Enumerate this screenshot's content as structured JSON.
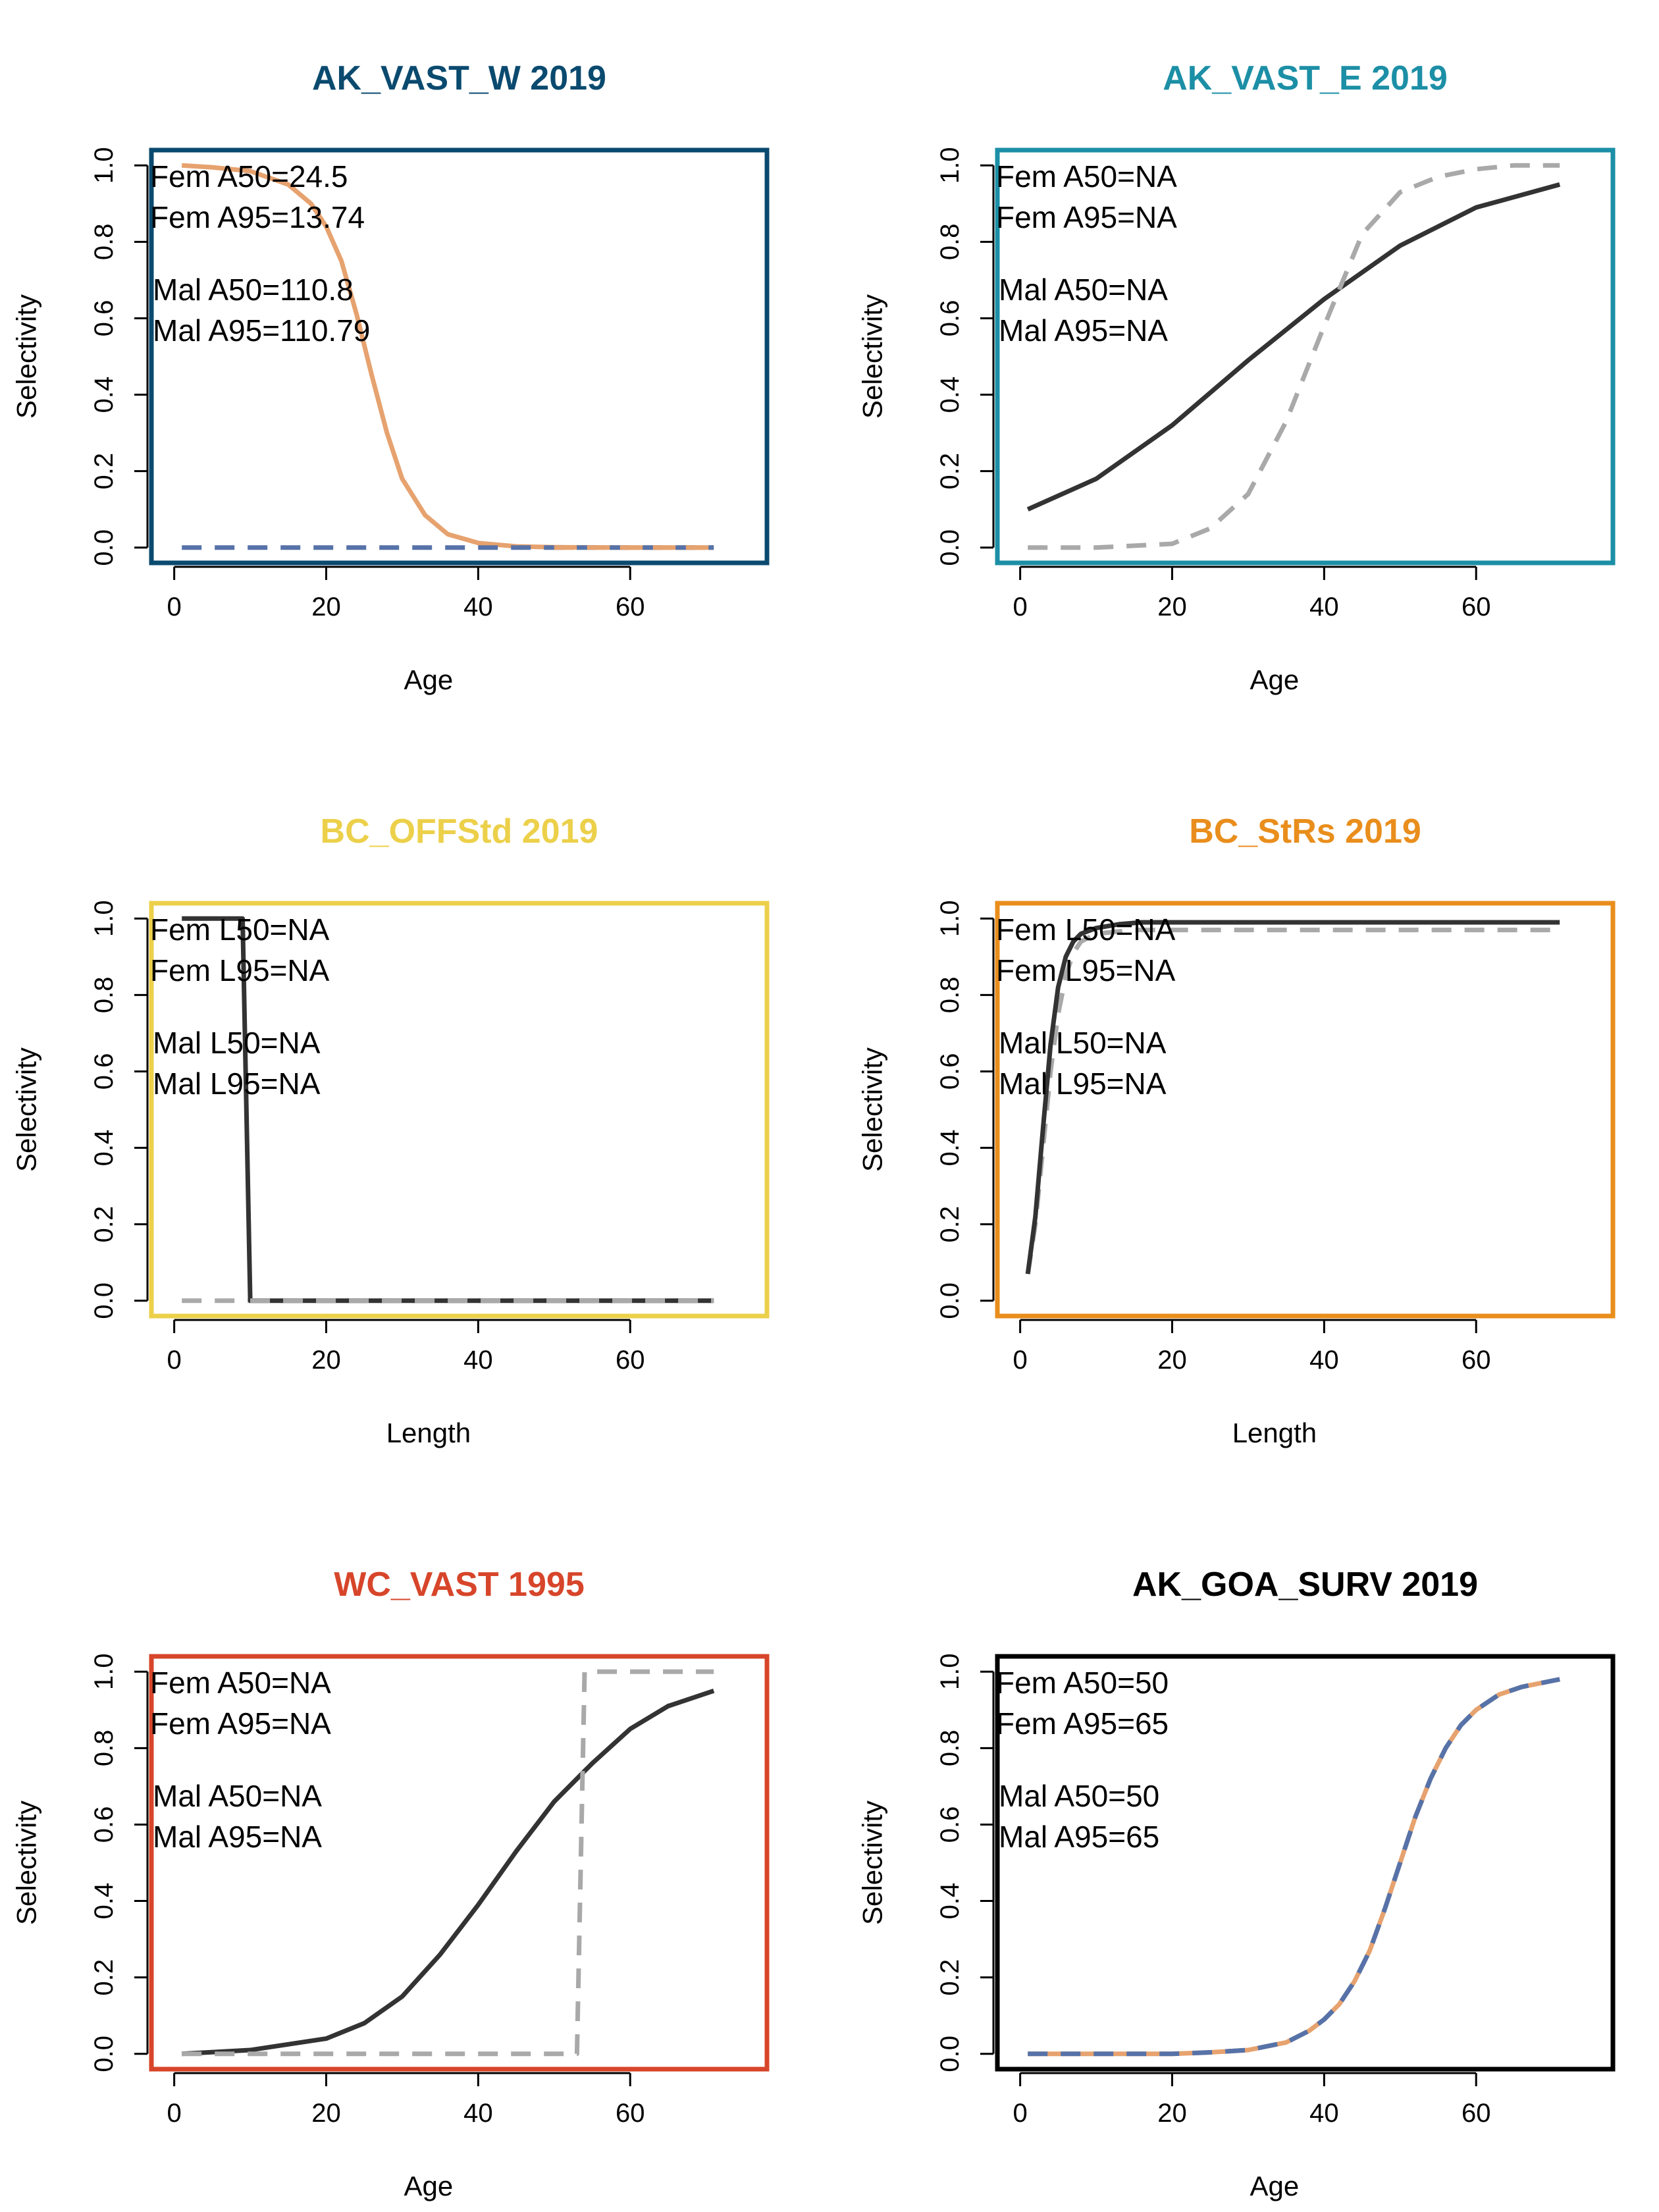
{
  "colors": {
    "female": "#e6a26f",
    "male": "#5672a8",
    "black_line": "#333333",
    "grey_line": "#a9a9a9"
  },
  "chart_data": [
    {
      "type": "line",
      "title": "AK_VAST_W 2019",
      "title_color": "#0b4a6f",
      "frame_color": "#0b4a6f",
      "xlabel": "Age",
      "ylabel": "Selectivity",
      "xlim": [
        -3,
        78
      ],
      "ylim": [
        -0.04,
        1.04
      ],
      "xticks": [
        "0",
        "20",
        "40",
        "60"
      ],
      "yticks": [
        "0.0",
        "0.2",
        "0.4",
        "0.6",
        "0.8",
        "1.0"
      ],
      "annotations": [
        "Fem A50=24.5",
        "Fem A95=13.74",
        "Mal A50=110.8",
        "Mal A95=110.79"
      ],
      "series": [
        {
          "style": "solid",
          "color": "#e6a26f",
          "x": [
            1,
            5,
            10,
            15,
            18,
            20,
            22,
            24,
            26,
            28,
            30,
            33,
            36,
            40,
            45,
            50,
            60,
            71
          ],
          "y": [
            1.0,
            0.995,
            0.985,
            0.95,
            0.9,
            0.84,
            0.75,
            0.61,
            0.45,
            0.3,
            0.18,
            0.085,
            0.035,
            0.012,
            0.003,
            0.001,
            0.0,
            0.0
          ]
        },
        {
          "style": "dashed",
          "color": "#5672a8",
          "x": [
            1,
            71
          ],
          "y": [
            0.0,
            0.0
          ]
        },
        {
          "style": "dashed",
          "color": "#e6a26f",
          "x": [
            50,
            71
          ],
          "y": [
            0.0,
            0.0
          ]
        }
      ]
    },
    {
      "type": "line",
      "title": "AK_VAST_E 2019",
      "title_color": "#1c8fa6",
      "frame_color": "#1c8fa6",
      "xlabel": "Age",
      "ylabel": "Selectivity",
      "xlim": [
        -3,
        78
      ],
      "ylim": [
        -0.04,
        1.04
      ],
      "xticks": [
        "0",
        "20",
        "40",
        "60"
      ],
      "yticks": [
        "0.0",
        "0.2",
        "0.4",
        "0.6",
        "0.8",
        "1.0"
      ],
      "annotations": [
        "Fem A50=NA",
        "Fem A95=NA",
        "Mal A50=NA",
        "Mal A95=NA"
      ],
      "series": [
        {
          "style": "solid",
          "color": "#333333",
          "x": [
            1,
            10,
            20,
            30,
            40,
            50,
            60,
            71
          ],
          "y": [
            0.1,
            0.18,
            0.32,
            0.49,
            0.65,
            0.79,
            0.89,
            0.95
          ]
        },
        {
          "style": "dashed",
          "color": "#a9a9a9",
          "x": [
            1,
            10,
            20,
            25,
            30,
            35,
            40,
            45,
            50,
            55,
            60,
            65,
            71
          ],
          "y": [
            0.0,
            0.0,
            0.01,
            0.05,
            0.14,
            0.33,
            0.58,
            0.82,
            0.93,
            0.97,
            0.99,
            1.0,
            1.0
          ]
        }
      ]
    },
    {
      "type": "line",
      "title": "BC_OFFStd 2019",
      "title_color": "#ecd04a",
      "frame_color": "#ecd04a",
      "xlabel": "Length",
      "ylabel": "Selectivity",
      "xlim": [
        -3,
        78
      ],
      "ylim": [
        -0.04,
        1.04
      ],
      "xticks": [
        "0",
        "20",
        "40",
        "60"
      ],
      "yticks": [
        "0.0",
        "0.2",
        "0.4",
        "0.6",
        "0.8",
        "1.0"
      ],
      "annotations": [
        "Fem L50=NA",
        "Fem L95=NA",
        "Mal L50=NA",
        "Mal L95=NA"
      ],
      "series": [
        {
          "style": "dashed",
          "color": "#a9a9a9",
          "x": [
            1,
            71
          ],
          "y": [
            0.0,
            0.0
          ]
        },
        {
          "style": "solid",
          "color": "#333333",
          "x": [
            1,
            9,
            10,
            71
          ],
          "y": [
            1.0,
            1.0,
            0.0,
            0.0
          ],
          "dashed_from": 10
        }
      ]
    },
    {
      "type": "line",
      "title": "BC_StRs 2019",
      "title_color": "#e98e1c",
      "frame_color": "#e98e1c",
      "xlabel": "Length",
      "ylabel": "Selectivity",
      "xlim": [
        -3,
        78
      ],
      "ylim": [
        -0.04,
        1.04
      ],
      "xticks": [
        "0",
        "20",
        "40",
        "60"
      ],
      "yticks": [
        "0.0",
        "0.2",
        "0.4",
        "0.6",
        "0.8",
        "1.0"
      ],
      "annotations": [
        "Fem L50=NA",
        "Fem L95=NA",
        "Mal L50=NA",
        "Mal L95=NA"
      ],
      "series": [
        {
          "style": "dashed",
          "color": "#a9a9a9",
          "x": [
            1,
            2,
            3,
            4,
            5,
            6,
            7,
            8,
            10,
            15,
            20,
            71
          ],
          "y": [
            0.07,
            0.2,
            0.4,
            0.6,
            0.75,
            0.85,
            0.91,
            0.94,
            0.96,
            0.97,
            0.97,
            0.97
          ]
        },
        {
          "style": "solid",
          "color": "#333333",
          "x": [
            1,
            2,
            3,
            4,
            5,
            6,
            7,
            8,
            10,
            13,
            16,
            20,
            71
          ],
          "y": [
            0.07,
            0.22,
            0.45,
            0.67,
            0.82,
            0.9,
            0.94,
            0.96,
            0.975,
            0.985,
            0.99,
            0.99,
            0.99
          ]
        }
      ]
    },
    {
      "type": "line",
      "title": "WC_VAST 1995",
      "title_color": "#d7452a",
      "frame_color": "#d7452a",
      "xlabel": "Age",
      "ylabel": "Selectivity",
      "xlim": [
        -3,
        78
      ],
      "ylim": [
        -0.04,
        1.04
      ],
      "xticks": [
        "0",
        "20",
        "40",
        "60"
      ],
      "yticks": [
        "0.0",
        "0.2",
        "0.4",
        "0.6",
        "0.8",
        "1.0"
      ],
      "annotations": [
        "Fem A50=NA",
        "Fem A95=NA",
        "Mal A50=NA",
        "Mal A95=NA"
      ],
      "series": [
        {
          "style": "solid",
          "color": "#333333",
          "x": [
            1,
            10,
            20,
            25,
            30,
            35,
            40,
            45,
            50,
            55,
            60,
            65,
            71
          ],
          "y": [
            0.0,
            0.01,
            0.04,
            0.08,
            0.15,
            0.26,
            0.39,
            0.53,
            0.66,
            0.76,
            0.85,
            0.91,
            0.95
          ]
        },
        {
          "style": "dashed",
          "color": "#a9a9a9",
          "x": [
            1,
            53,
            54,
            71
          ],
          "y": [
            0.0,
            0.0,
            1.0,
            1.0
          ]
        }
      ]
    },
    {
      "type": "line",
      "title": "AK_GOA_SURV 2019",
      "title_color": "#000000",
      "frame_color": "#000000",
      "xlabel": "Age",
      "ylabel": "Selectivity",
      "xlim": [
        -3,
        78
      ],
      "ylim": [
        -0.04,
        1.04
      ],
      "xticks": [
        "0",
        "20",
        "40",
        "60"
      ],
      "yticks": [
        "0.0",
        "0.2",
        "0.4",
        "0.6",
        "0.8",
        "1.0"
      ],
      "annotations": [
        "Fem A50=50",
        "Fem A95=65",
        "Mal A50=50",
        "Mal A95=65"
      ],
      "series": [
        {
          "style": "solid",
          "color": "#e6a26f",
          "x": [
            1,
            10,
            20,
            25,
            30,
            35,
            38,
            40,
            42,
            44,
            46,
            48,
            50,
            52,
            54,
            56,
            58,
            60,
            63,
            66,
            71
          ],
          "y": [
            0.0,
            0.0,
            0.0,
            0.004,
            0.01,
            0.03,
            0.06,
            0.09,
            0.13,
            0.19,
            0.27,
            0.38,
            0.5,
            0.62,
            0.72,
            0.8,
            0.86,
            0.9,
            0.94,
            0.96,
            0.98
          ]
        },
        {
          "style": "dashed",
          "color": "#5672a8",
          "x": [
            1,
            10,
            20,
            25,
            30,
            35,
            38,
            40,
            42,
            44,
            46,
            48,
            50,
            52,
            54,
            56,
            58,
            60,
            63,
            66,
            71
          ],
          "y": [
            0.0,
            0.0,
            0.0,
            0.004,
            0.01,
            0.03,
            0.06,
            0.09,
            0.13,
            0.19,
            0.27,
            0.38,
            0.5,
            0.62,
            0.72,
            0.8,
            0.86,
            0.9,
            0.94,
            0.96,
            0.98
          ]
        }
      ]
    }
  ]
}
